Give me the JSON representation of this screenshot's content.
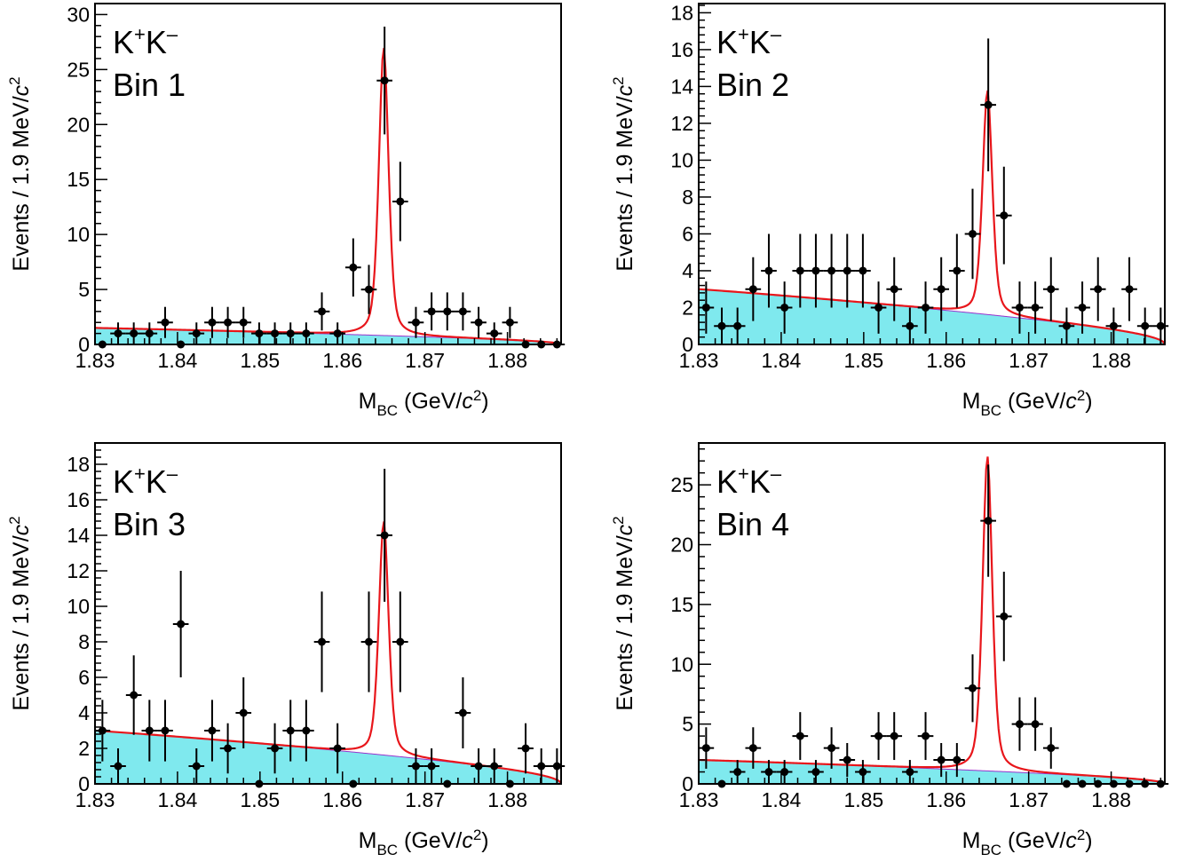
{
  "chart_data": [
    {
      "type": "scatter",
      "panel_label": "Bin 1",
      "decay_label": "K⁺K⁻",
      "ylabel": "Events / 1.9 MeV/c²",
      "xlabel": "M_BC (GeV/c²)",
      "xlim": [
        1.83,
        1.8865
      ],
      "ylim": [
        0,
        31
      ],
      "xticks": [
        "1.83",
        "1.84",
        "1.85",
        "1.86",
        "1.87",
        "1.88"
      ],
      "yticks": [
        "0",
        "5",
        "10",
        "15",
        "20",
        "25",
        "30"
      ],
      "bkg_level": 1.5,
      "signal_peak": 27,
      "x": [
        1.8309,
        1.8328,
        1.8347,
        1.8366,
        1.8385,
        1.8404,
        1.8423,
        1.8442,
        1.8461,
        1.848,
        1.8499,
        1.8518,
        1.8537,
        1.8556,
        1.8575,
        1.8594,
        1.8613,
        1.8632,
        1.8651,
        1.867,
        1.8689,
        1.8708,
        1.8727,
        1.8746,
        1.8765,
        1.8784,
        1.8803,
        1.8822,
        1.8841,
        1.886
      ],
      "y": [
        0,
        1,
        1,
        1,
        2,
        0,
        1,
        2,
        2,
        2,
        1,
        1,
        1,
        1,
        3,
        1,
        7,
        5,
        24,
        13,
        2,
        3,
        3,
        3,
        2,
        1,
        2,
        0,
        0,
        0
      ]
    },
    {
      "type": "scatter",
      "panel_label": "Bin 2",
      "decay_label": "K⁺K⁻",
      "ylabel": "Events / 1.9 MeV/c²",
      "xlabel": "M_BC (GeV/c²)",
      "xlim": [
        1.83,
        1.8865
      ],
      "ylim": [
        0,
        18.5
      ],
      "xticks": [
        "1.83",
        "1.84",
        "1.85",
        "1.86",
        "1.87",
        "1.88"
      ],
      "yticks": [
        "0",
        "2",
        "4",
        "6",
        "8",
        "10",
        "12",
        "14",
        "16",
        "18"
      ],
      "bkg_level": 3.0,
      "signal_peak": 13.8,
      "x": [
        1.8309,
        1.8328,
        1.8347,
        1.8366,
        1.8385,
        1.8404,
        1.8423,
        1.8442,
        1.8461,
        1.848,
        1.8499,
        1.8518,
        1.8537,
        1.8556,
        1.8575,
        1.8594,
        1.8613,
        1.8632,
        1.8651,
        1.867,
        1.8689,
        1.8708,
        1.8727,
        1.8746,
        1.8765,
        1.8784,
        1.8803,
        1.8822,
        1.8841,
        1.886
      ],
      "y": [
        2,
        1,
        1,
        3,
        4,
        2,
        4,
        4,
        4,
        4,
        4,
        2,
        3,
        1,
        2,
        3,
        4,
        6,
        13,
        7,
        2,
        2,
        3,
        1,
        2,
        3,
        1,
        3,
        1,
        1
      ]
    },
    {
      "type": "scatter",
      "panel_label": "Bin 3",
      "decay_label": "K⁺K⁻",
      "ylabel": "Events / 1.9 MeV/c²",
      "xlabel": "M_BC (GeV/c²)",
      "xlim": [
        1.83,
        1.8865
      ],
      "ylim": [
        0,
        19.2
      ],
      "xticks": [
        "1.83",
        "1.84",
        "1.85",
        "1.86",
        "1.87",
        "1.88"
      ],
      "yticks": [
        "0",
        "2",
        "4",
        "6",
        "8",
        "10",
        "12",
        "14",
        "16",
        "18"
      ],
      "bkg_level": 3.0,
      "signal_peak": 14.8,
      "x": [
        1.8309,
        1.8328,
        1.8347,
        1.8366,
        1.8385,
        1.8404,
        1.8423,
        1.8442,
        1.8461,
        1.848,
        1.8499,
        1.8518,
        1.8537,
        1.8556,
        1.8575,
        1.8594,
        1.8613,
        1.8632,
        1.8651,
        1.867,
        1.8689,
        1.8708,
        1.8727,
        1.8746,
        1.8765,
        1.8784,
        1.8803,
        1.8822,
        1.8841,
        1.886
      ],
      "y": [
        3,
        1,
        5,
        3,
        3,
        9,
        1,
        3,
        2,
        4,
        0,
        2,
        3,
        3,
        8,
        2,
        0,
        8,
        14,
        8,
        1,
        1,
        0,
        4,
        1,
        1,
        0,
        2,
        1,
        1
      ]
    },
    {
      "type": "scatter",
      "panel_label": "Bin 4",
      "decay_label": "K⁺K⁻",
      "ylabel": "Events / 1.9 MeV/c²",
      "xlabel": "M_BC (GeV/c²)",
      "xlim": [
        1.83,
        1.8865
      ],
      "ylim": [
        0,
        28.5
      ],
      "xticks": [
        "1.83",
        "1.84",
        "1.85",
        "1.86",
        "1.87",
        "1.88"
      ],
      "yticks": [
        "0",
        "5",
        "10",
        "15",
        "20",
        "25"
      ],
      "bkg_level": 2.0,
      "signal_peak": 27.4,
      "x": [
        1.8309,
        1.8328,
        1.8347,
        1.8366,
        1.8385,
        1.8404,
        1.8423,
        1.8442,
        1.8461,
        1.848,
        1.8499,
        1.8518,
        1.8537,
        1.8556,
        1.8575,
        1.8594,
        1.8613,
        1.8632,
        1.8651,
        1.867,
        1.8689,
        1.8708,
        1.8727,
        1.8746,
        1.8765,
        1.8784,
        1.8803,
        1.8822,
        1.8841,
        1.886
      ],
      "y": [
        3,
        0,
        1,
        3,
        1,
        1,
        4,
        1,
        3,
        2,
        1,
        4,
        4,
        1,
        4,
        2,
        2,
        8,
        22,
        14,
        5,
        5,
        3,
        0,
        0,
        0,
        0,
        0,
        0,
        0
      ]
    }
  ],
  "colors": {
    "background_fill": "#7fe9ee",
    "background_line": "#9a33cc",
    "fit_line": "#e8161b",
    "points": "#000000",
    "frame": "#000000"
  }
}
